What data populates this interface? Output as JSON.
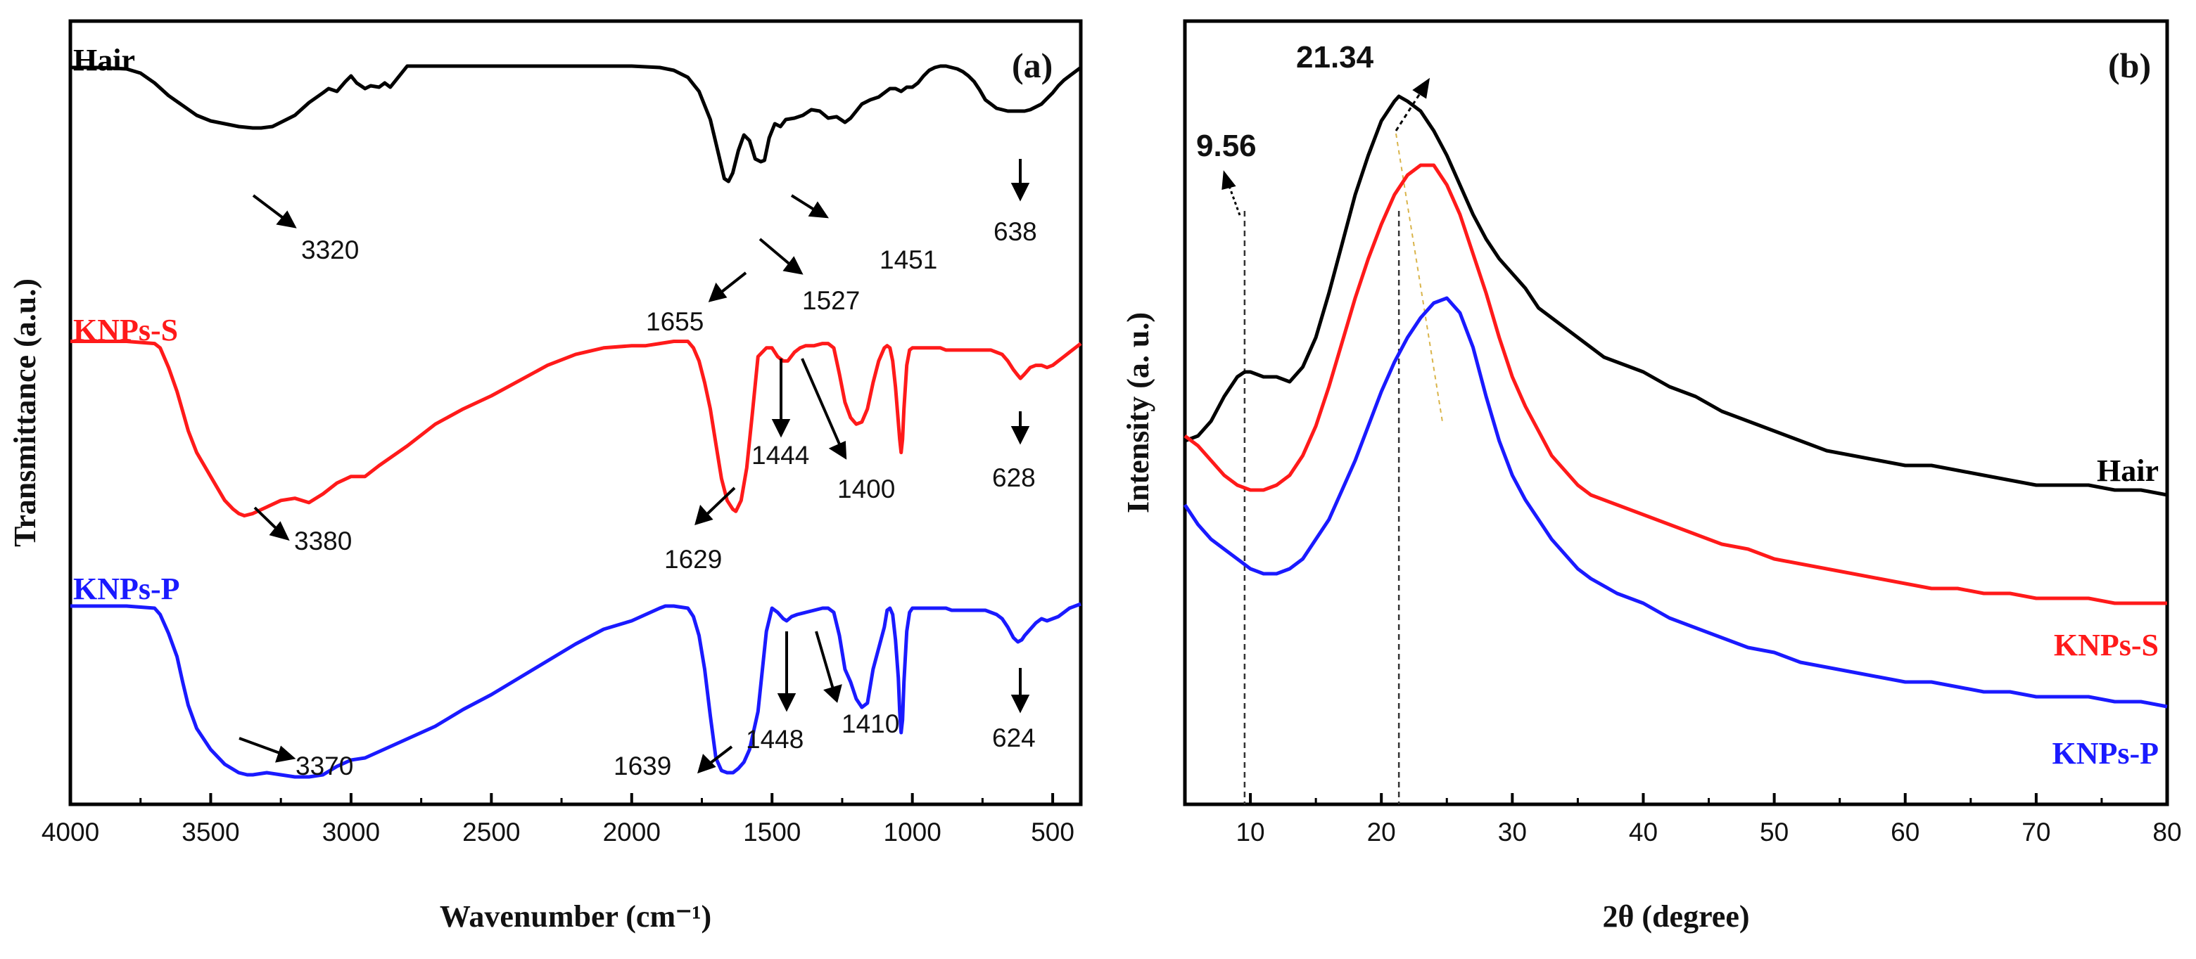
{
  "chart_data": [
    {
      "panel": "(a)",
      "type": "line",
      "xlabel": "Wavenumber (cm⁻¹)",
      "ylabel": "Transmittance (a.u.)",
      "xlim": [
        4000,
        400
      ],
      "xticks": [
        "4000",
        "3500",
        "3000",
        "2500",
        "2000",
        "1500",
        "1000",
        "500"
      ],
      "xtick_values": [
        4000,
        3500,
        3000,
        2500,
        2000,
        1500,
        1000,
        500
      ],
      "series": [
        {
          "name": "Hair",
          "color": "#000000",
          "peak_labels": [
            "3320",
            "1655",
            "1527",
            "1451",
            "638"
          ],
          "x": [
            4000,
            3900,
            3800,
            3750,
            3700,
            3650,
            3600,
            3550,
            3500,
            3450,
            3400,
            3350,
            3320,
            3280,
            3250,
            3200,
            3150,
            3100,
            3080,
            3050,
            3020,
            3000,
            2980,
            2950,
            2930,
            2900,
            2880,
            2860,
            2800,
            2600,
            2400,
            2200,
            2000,
            1900,
            1850,
            1800,
            1760,
            1720,
            1690,
            1670,
            1655,
            1640,
            1620,
            1600,
            1580,
            1560,
            1540,
            1527,
            1510,
            1490,
            1470,
            1451,
            1420,
            1390,
            1360,
            1330,
            1300,
            1270,
            1240,
            1220,
            1200,
            1180,
            1150,
            1120,
            1100,
            1080,
            1060,
            1040,
            1020,
            1000,
            980,
            960,
            940,
            920,
            900,
            880,
            860,
            840,
            820,
            800,
            780,
            760,
            740,
            720,
            700,
            680,
            660,
            640,
            620,
            600,
            580,
            560,
            540,
            520,
            500,
            480,
            460,
            440,
            420,
            400
          ],
          "y": [
            0.97,
            0.97,
            0.96,
            0.93,
            0.86,
            0.77,
            0.7,
            0.63,
            0.59,
            0.57,
            0.55,
            0.54,
            0.54,
            0.55,
            0.58,
            0.63,
            0.72,
            0.79,
            0.82,
            0.8,
            0.87,
            0.91,
            0.86,
            0.82,
            0.84,
            0.83,
            0.86,
            0.83,
            0.98,
            0.98,
            0.98,
            0.98,
            0.98,
            0.97,
            0.95,
            0.9,
            0.8,
            0.6,
            0.35,
            0.18,
            0.16,
            0.22,
            0.38,
            0.49,
            0.45,
            0.32,
            0.3,
            0.31,
            0.47,
            0.57,
            0.55,
            0.6,
            0.61,
            0.63,
            0.67,
            0.66,
            0.61,
            0.62,
            0.58,
            0.61,
            0.66,
            0.71,
            0.74,
            0.76,
            0.79,
            0.82,
            0.82,
            0.8,
            0.83,
            0.83,
            0.86,
            0.91,
            0.95,
            0.97,
            0.98,
            0.98,
            0.97,
            0.96,
            0.94,
            0.91,
            0.87,
            0.81,
            0.74,
            0.71,
            0.68,
            0.67,
            0.66,
            0.66,
            0.66,
            0.66,
            0.67,
            0.69,
            0.71,
            0.75,
            0.79,
            0.84,
            0.88,
            0.91,
            0.94,
            0.97
          ]
        },
        {
          "name": "KNPs-S",
          "color": "#ff1a1a",
          "peak_labels": [
            "3380",
            "1629",
            "1444",
            "1400",
            "628"
          ],
          "x": [
            4000,
            3900,
            3800,
            3700,
            3680,
            3650,
            3620,
            3600,
            3580,
            3550,
            3500,
            3450,
            3420,
            3400,
            3380,
            3350,
            3300,
            3250,
            3200,
            3150,
            3100,
            3050,
            3000,
            2950,
            2900,
            2800,
            2700,
            2600,
            2500,
            2400,
            2300,
            2200,
            2100,
            2000,
            1950,
            1900,
            1850,
            1820,
            1800,
            1780,
            1760,
            1740,
            1720,
            1700,
            1680,
            1660,
            1640,
            1629,
            1610,
            1590,
            1570,
            1550,
            1520,
            1500,
            1480,
            1460,
            1444,
            1420,
            1400,
            1380,
            1350,
            1320,
            1300,
            1280,
            1260,
            1240,
            1220,
            1200,
            1180,
            1160,
            1150,
            1140,
            1120,
            1100,
            1090,
            1080,
            1070,
            1060,
            1050,
            1045,
            1040,
            1035,
            1030,
            1020,
            1010,
            1000,
            980,
            960,
            940,
            920,
            900,
            880,
            860,
            840,
            820,
            800,
            780,
            760,
            740,
            720,
            700,
            680,
            660,
            640,
            628,
            615,
            600,
            580,
            560,
            540,
            520,
            500,
            480,
            460,
            440,
            420,
            400
          ],
          "y": [
            0.95,
            0.95,
            0.95,
            0.94,
            0.92,
            0.83,
            0.72,
            0.63,
            0.54,
            0.44,
            0.33,
            0.22,
            0.18,
            0.16,
            0.15,
            0.16,
            0.19,
            0.22,
            0.23,
            0.21,
            0.25,
            0.3,
            0.33,
            0.33,
            0.38,
            0.47,
            0.57,
            0.64,
            0.7,
            0.77,
            0.84,
            0.89,
            0.92,
            0.93,
            0.93,
            0.94,
            0.95,
            0.95,
            0.95,
            0.92,
            0.86,
            0.76,
            0.64,
            0.48,
            0.32,
            0.22,
            0.18,
            0.17,
            0.22,
            0.37,
            0.62,
            0.88,
            0.92,
            0.92,
            0.88,
            0.86,
            0.86,
            0.9,
            0.92,
            0.93,
            0.93,
            0.94,
            0.94,
            0.92,
            0.8,
            0.67,
            0.6,
            0.57,
            0.58,
            0.64,
            0.7,
            0.76,
            0.86,
            0.92,
            0.93,
            0.92,
            0.86,
            0.74,
            0.58,
            0.5,
            0.44,
            0.5,
            0.64,
            0.84,
            0.91,
            0.92,
            0.92,
            0.92,
            0.92,
            0.92,
            0.92,
            0.91,
            0.91,
            0.91,
            0.91,
            0.91,
            0.91,
            0.91,
            0.91,
            0.91,
            0.9,
            0.89,
            0.86,
            0.82,
            0.8,
            0.78,
            0.8,
            0.83,
            0.84,
            0.84,
            0.83,
            0.84,
            0.86,
            0.88,
            0.9,
            0.92,
            0.94
          ]
        },
        {
          "name": "KNPs-P",
          "color": "#1a1aff",
          "peak_labels": [
            "3370",
            "1639",
            "1448",
            "1410",
            "624"
          ],
          "x": [
            4000,
            3900,
            3800,
            3700,
            3680,
            3650,
            3620,
            3600,
            3580,
            3550,
            3500,
            3450,
            3400,
            3370,
            3350,
            3300,
            3250,
            3200,
            3150,
            3100,
            3050,
            3000,
            2950,
            2900,
            2800,
            2700,
            2600,
            2500,
            2400,
            2300,
            2200,
            2100,
            2000,
            1950,
            1900,
            1880,
            1850,
            1800,
            1780,
            1760,
            1740,
            1720,
            1700,
            1680,
            1660,
            1639,
            1620,
            1600,
            1580,
            1550,
            1520,
            1500,
            1480,
            1460,
            1448,
            1430,
            1410,
            1380,
            1350,
            1320,
            1300,
            1280,
            1260,
            1240,
            1220,
            1200,
            1180,
            1160,
            1150,
            1140,
            1120,
            1100,
            1090,
            1080,
            1070,
            1060,
            1050,
            1045,
            1040,
            1035,
            1030,
            1020,
            1010,
            1000,
            980,
            960,
            940,
            920,
            900,
            880,
            860,
            840,
            820,
            800,
            780,
            760,
            740,
            720,
            700,
            680,
            660,
            640,
            624,
            610,
            600,
            580,
            560,
            540,
            520,
            500,
            480,
            460,
            440,
            420,
            400
          ],
          "y": [
            0.96,
            0.96,
            0.96,
            0.95,
            0.92,
            0.83,
            0.72,
            0.6,
            0.49,
            0.38,
            0.28,
            0.21,
            0.17,
            0.16,
            0.16,
            0.17,
            0.16,
            0.15,
            0.15,
            0.16,
            0.2,
            0.23,
            0.24,
            0.27,
            0.33,
            0.39,
            0.47,
            0.54,
            0.62,
            0.7,
            0.78,
            0.85,
            0.89,
            0.92,
            0.95,
            0.96,
            0.96,
            0.95,
            0.91,
            0.82,
            0.66,
            0.44,
            0.24,
            0.18,
            0.17,
            0.17,
            0.19,
            0.22,
            0.28,
            0.46,
            0.84,
            0.95,
            0.93,
            0.9,
            0.89,
            0.91,
            0.92,
            0.93,
            0.94,
            0.95,
            0.95,
            0.93,
            0.82,
            0.66,
            0.6,
            0.52,
            0.48,
            0.5,
            0.58,
            0.66,
            0.76,
            0.86,
            0.94,
            0.95,
            0.92,
            0.8,
            0.62,
            0.46,
            0.36,
            0.42,
            0.6,
            0.84,
            0.93,
            0.95,
            0.95,
            0.95,
            0.95,
            0.95,
            0.95,
            0.95,
            0.94,
            0.94,
            0.94,
            0.94,
            0.94,
            0.94,
            0.94,
            0.93,
            0.92,
            0.9,
            0.86,
            0.81,
            0.79,
            0.8,
            0.82,
            0.85,
            0.88,
            0.9,
            0.89,
            0.9,
            0.91,
            0.93,
            0.95,
            0.96,
            0.97
          ]
        }
      ]
    },
    {
      "panel": "(b)",
      "type": "line",
      "xlabel": "2θ (degree)",
      "ylabel": "Intensity (a. u.)",
      "xlim": [
        5,
        80
      ],
      "xticks": [
        "10",
        "20",
        "30",
        "40",
        "50",
        "60",
        "70",
        "80"
      ],
      "xtick_values": [
        10,
        20,
        30,
        40,
        50,
        60,
        70,
        80
      ],
      "annotations": [
        "21.34",
        "9.56"
      ],
      "reference_lines": [
        9.56,
        21.34
      ],
      "series": [
        {
          "name": "Hair",
          "color": "#000000",
          "x": [
            5,
            6,
            7,
            8,
            9,
            9.56,
            10,
            11,
            12,
            13,
            14,
            15,
            16,
            17,
            18,
            19,
            20,
            21,
            21.34,
            22,
            23,
            24,
            25,
            26,
            27,
            28,
            29,
            30,
            31,
            32,
            33,
            34,
            35,
            36,
            37,
            38,
            39,
            40,
            42,
            44,
            46,
            48,
            50,
            52,
            54,
            56,
            58,
            60,
            62,
            64,
            66,
            68,
            70,
            72,
            74,
            76,
            78,
            80
          ],
          "y": [
            0.14,
            0.15,
            0.18,
            0.23,
            0.27,
            0.28,
            0.28,
            0.27,
            0.27,
            0.26,
            0.29,
            0.35,
            0.44,
            0.54,
            0.64,
            0.72,
            0.79,
            0.83,
            0.84,
            0.83,
            0.81,
            0.77,
            0.72,
            0.66,
            0.6,
            0.55,
            0.51,
            0.48,
            0.45,
            0.41,
            0.39,
            0.37,
            0.35,
            0.33,
            0.31,
            0.3,
            0.29,
            0.28,
            0.25,
            0.23,
            0.2,
            0.18,
            0.16,
            0.14,
            0.12,
            0.11,
            0.1,
            0.09,
            0.09,
            0.08,
            0.07,
            0.06,
            0.05,
            0.05,
            0.05,
            0.04,
            0.04,
            0.03
          ]
        },
        {
          "name": "KNPs-S",
          "color": "#ff1a1a",
          "x": [
            5,
            6,
            7,
            8,
            9,
            10,
            11,
            12,
            13,
            14,
            15,
            16,
            17,
            18,
            19,
            20,
            21,
            22,
            23,
            24,
            25,
            26,
            27,
            28,
            29,
            30,
            31,
            32,
            33,
            34,
            35,
            36,
            38,
            40,
            42,
            44,
            46,
            48,
            50,
            52,
            54,
            56,
            58,
            60,
            62,
            64,
            66,
            68,
            70,
            72,
            74,
            76,
            78,
            80
          ],
          "y": [
            0.15,
            0.13,
            0.1,
            0.07,
            0.05,
            0.04,
            0.04,
            0.05,
            0.07,
            0.11,
            0.17,
            0.25,
            0.34,
            0.43,
            0.51,
            0.58,
            0.64,
            0.68,
            0.7,
            0.7,
            0.66,
            0.6,
            0.52,
            0.44,
            0.35,
            0.27,
            0.21,
            0.16,
            0.11,
            0.08,
            0.05,
            0.03,
            0.01,
            -0.01,
            -0.03,
            -0.05,
            -0.07,
            -0.08,
            -0.1,
            -0.11,
            -0.12,
            -0.13,
            -0.14,
            -0.15,
            -0.16,
            -0.16,
            -0.17,
            -0.17,
            -0.18,
            -0.18,
            -0.18,
            -0.19,
            -0.19,
            -0.19
          ]
        },
        {
          "name": "KNPs-P",
          "color": "#1a1aff",
          "x": [
            5,
            6,
            7,
            8,
            9,
            10,
            11,
            12,
            13,
            14,
            15,
            16,
            17,
            18,
            19,
            20,
            21,
            22,
            23,
            24,
            25,
            26,
            27,
            28,
            29,
            30,
            31,
            32,
            33,
            34,
            35,
            36,
            38,
            40,
            42,
            44,
            46,
            48,
            50,
            52,
            54,
            56,
            58,
            60,
            62,
            64,
            66,
            68,
            70,
            72,
            74,
            76,
            78,
            80
          ],
          "y": [
            0.01,
            -0.03,
            -0.06,
            -0.08,
            -0.1,
            -0.12,
            -0.13,
            -0.13,
            -0.12,
            -0.1,
            -0.06,
            -0.02,
            0.04,
            0.1,
            0.17,
            0.24,
            0.3,
            0.35,
            0.39,
            0.42,
            0.43,
            0.4,
            0.33,
            0.23,
            0.14,
            0.07,
            0.02,
            -0.02,
            -0.06,
            -0.09,
            -0.12,
            -0.14,
            -0.17,
            -0.19,
            -0.22,
            -0.24,
            -0.26,
            -0.28,
            -0.29,
            -0.31,
            -0.32,
            -0.33,
            -0.34,
            -0.35,
            -0.35,
            -0.36,
            -0.37,
            -0.37,
            -0.38,
            -0.38,
            -0.38,
            -0.39,
            -0.39,
            -0.4
          ]
        }
      ]
    }
  ]
}
